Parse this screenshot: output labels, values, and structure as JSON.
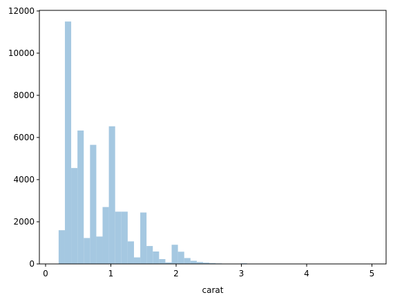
{
  "chart_data": {
    "type": "histogram",
    "x_label": "carat",
    "bins": [
      0.2,
      0.2962,
      0.3924,
      0.4886,
      0.5848,
      0.681,
      0.7772,
      0.8734,
      0.9696,
      1.0658,
      1.162,
      1.2582,
      1.3544,
      1.4506,
      1.5468,
      1.643,
      1.7392,
      1.8354,
      1.9316,
      2.0278,
      2.124,
      2.2202,
      2.3164,
      2.4126,
      2.5088,
      2.605,
      2.7012,
      2.7974,
      2.8936,
      2.9898,
      3.086,
      3.1822,
      3.2784,
      3.3746,
      3.4708,
      3.567,
      3.6632,
      3.7594,
      3.8556,
      3.9518,
      4.048,
      4.1442,
      4.2404,
      4.3366,
      4.4328,
      4.529,
      4.6252,
      4.7214,
      4.8176,
      4.9138,
      5.01
    ],
    "values": [
      1600,
      11500,
      4550,
      6330,
      1230,
      5650,
      1300,
      2700,
      6530,
      2480,
      2480,
      1070,
      310,
      2440,
      850,
      590,
      230,
      70,
      910,
      580,
      280,
      150,
      90,
      60,
      40,
      25,
      15,
      10,
      8,
      30,
      5,
      3,
      2,
      1,
      1,
      0,
      0,
      0,
      0,
      0,
      1,
      0,
      0,
      0,
      0,
      0,
      0,
      0,
      0,
      1
    ],
    "color": "#a5c8e1",
    "xlim": [
      -0.095,
      5.217
    ],
    "ylim": [
      0,
      12030
    ],
    "xticks": [
      0,
      1,
      2,
      3,
      4,
      5
    ],
    "yticks": [
      0,
      2000,
      4000,
      6000,
      8000,
      10000,
      12000
    ]
  }
}
